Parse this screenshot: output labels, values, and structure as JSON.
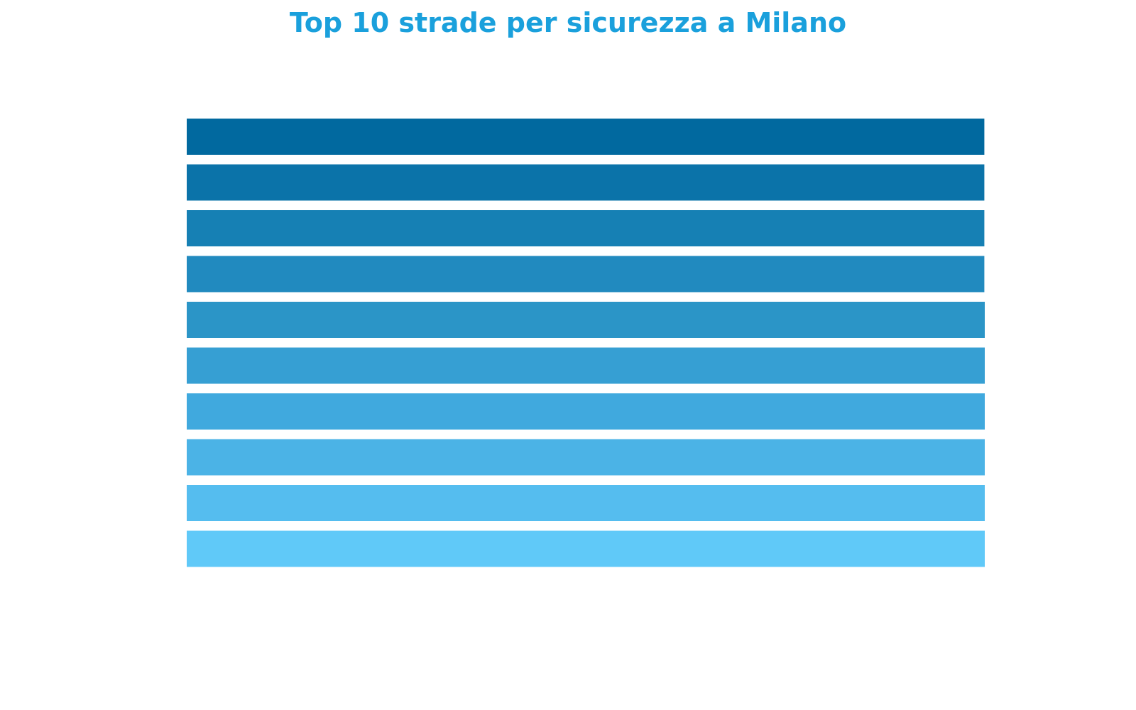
{
  "chart_data": {
    "type": "bar",
    "orientation": "horizontal",
    "title": "Top 10 strade per sicurezza a Milano",
    "categories": [
      "",
      "",
      "",
      "",
      "",
      "",
      "",
      "",
      "",
      ""
    ],
    "values": [
      100,
      100,
      100,
      100,
      100.05,
      100.05,
      100.05,
      100.05,
      100.05,
      100.05
    ],
    "xlim": [
      0,
      100.05
    ],
    "grid": false,
    "legend": "none",
    "title_color": "#1aa0dc",
    "bar_colors": [
      "#01699f",
      "#0b73a9",
      "#1680b4",
      "#218abf",
      "#2b95c7",
      "#369fd3",
      "#40a9de",
      "#4bb3e6",
      "#55bdef",
      "#60c9f8"
    ]
  }
}
